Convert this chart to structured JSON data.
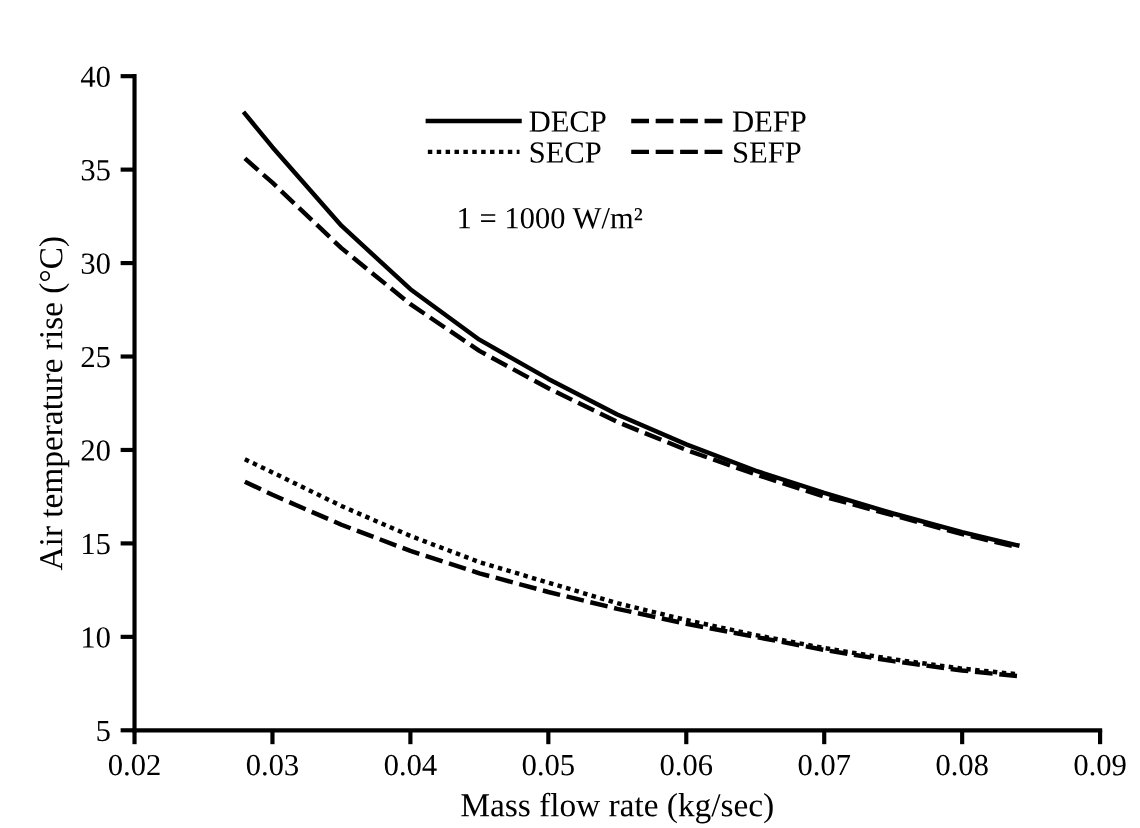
{
  "chart_data": {
    "type": "line",
    "xlabel": "Mass flow rate (kg/sec)",
    "ylabel": "Air temperature rise (°C)",
    "x": [
      0.028,
      0.03,
      0.035,
      0.04,
      0.045,
      0.05,
      0.055,
      0.06,
      0.065,
      0.07,
      0.075,
      0.08,
      0.084
    ],
    "series": [
      {
        "name": "DECP",
        "color": "#000000",
        "line_style": "solid",
        "values": [
          38,
          36.2,
          32.0,
          28.6,
          25.9,
          23.8,
          21.9,
          20.3,
          18.9,
          17.7,
          16.6,
          15.6,
          14.9
        ]
      },
      {
        "name": "DEFP",
        "color": "#000000",
        "line_style": "dashed",
        "values": [
          35.6,
          34.3,
          30.8,
          27.8,
          25.3,
          23.3,
          21.5,
          20.0,
          18.7,
          17.5,
          16.5,
          15.5,
          14.8
        ]
      },
      {
        "name": "SECP",
        "color": "#000000",
        "line_style": "dotted",
        "values": [
          19.5,
          18.8,
          17.0,
          15.4,
          14.0,
          12.9,
          11.8,
          10.9,
          10.1,
          9.4,
          8.8,
          8.3,
          8.0
        ]
      },
      {
        "name": "SEFP",
        "color": "#000000",
        "line_style": "dashed",
        "values": [
          18.3,
          17.6,
          16.0,
          14.6,
          13.4,
          12.4,
          11.5,
          10.7,
          10.0,
          9.3,
          8.7,
          8.2,
          7.9
        ]
      }
    ],
    "annotations": [
      "1 = 1000 W/m²"
    ],
    "xlim": [
      0.02,
      0.09
    ],
    "xticks": [
      {
        "value": 0.02,
        "label": "0.02"
      },
      {
        "value": 0.03,
        "label": "0.03"
      },
      {
        "value": 0.04,
        "label": "0.04"
      },
      {
        "value": 0.05,
        "label": "0.05"
      },
      {
        "value": 0.06,
        "label": "0.06"
      },
      {
        "value": 0.07,
        "label": "0.07"
      },
      {
        "value": 0.08,
        "label": "0.08"
      },
      {
        "value": 0.09,
        "label": "0.09"
      }
    ],
    "ylim": [
      5,
      40
    ],
    "yticks": [
      5,
      10,
      15,
      20,
      25,
      30,
      35,
      40
    ],
    "grid": false,
    "legend": "top",
    "marker": "none"
  }
}
